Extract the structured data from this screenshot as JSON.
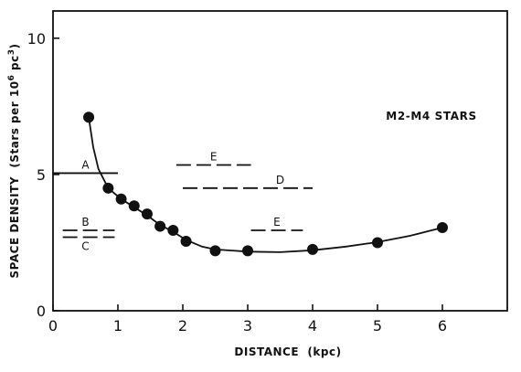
{
  "chart_data": {
    "type": "scatter",
    "annotation": "M2-M4 STARS",
    "xlabel": "DISTANCE  (kpc)",
    "ylabel": "SPACE DENSITY  (Stars per 10",
    "ylabel_sup1": "6",
    "ylabel_mid": " pc",
    "ylabel_sup2": "3",
    "ylabel_end": ")",
    "xlim": [
      0,
      7
    ],
    "ylim": [
      0,
      11
    ],
    "x_ticks": [
      0,
      1,
      2,
      3,
      4,
      5,
      6
    ],
    "x_tick_labels": [
      "0",
      "1",
      "2",
      "3",
      "4",
      "5",
      "6"
    ],
    "y_ticks": [
      0,
      5,
      10
    ],
    "y_tick_labels": [
      "0",
      "5",
      "10"
    ],
    "points": [
      {
        "x": 0.55,
        "y": 7.1
      },
      {
        "x": 0.85,
        "y": 4.5
      },
      {
        "x": 1.05,
        "y": 4.1
      },
      {
        "x": 1.25,
        "y": 3.85
      },
      {
        "x": 1.45,
        "y": 3.55
      },
      {
        "x": 1.65,
        "y": 3.1
      },
      {
        "x": 1.85,
        "y": 2.95
      },
      {
        "x": 2.05,
        "y": 2.55
      },
      {
        "x": 2.5,
        "y": 2.2
      },
      {
        "x": 3.0,
        "y": 2.2
      },
      {
        "x": 4.0,
        "y": 2.25
      },
      {
        "x": 5.0,
        "y": 2.5
      },
      {
        "x": 6.0,
        "y": 3.05
      }
    ],
    "fit_curve": [
      [
        0.55,
        7.1
      ],
      [
        0.62,
        6.0
      ],
      [
        0.7,
        5.2
      ],
      [
        0.85,
        4.5
      ],
      [
        1.05,
        4.1
      ],
      [
        1.25,
        3.8
      ],
      [
        1.45,
        3.5
      ],
      [
        1.65,
        3.15
      ],
      [
        1.85,
        2.9
      ],
      [
        2.05,
        2.6
      ],
      [
        2.3,
        2.35
      ],
      [
        2.5,
        2.25
      ],
      [
        3.0,
        2.17
      ],
      [
        3.5,
        2.15
      ],
      [
        4.0,
        2.22
      ],
      [
        4.5,
        2.35
      ],
      [
        5.0,
        2.52
      ],
      [
        5.5,
        2.75
      ],
      [
        6.0,
        3.05
      ]
    ],
    "segments": [
      {
        "label": "A",
        "x0": 0.0,
        "x1": 1.0,
        "y": 5.05,
        "dashed": false
      },
      {
        "label": "B",
        "x0": 0.15,
        "x1": 0.95,
        "y": 2.95,
        "dashed": true
      },
      {
        "label": "C",
        "x0": 0.15,
        "x1": 0.95,
        "y": 2.7,
        "dashed": true
      },
      {
        "label": "E",
        "x0": 1.9,
        "x1": 3.05,
        "y": 5.35,
        "dashed": true
      },
      {
        "label": "D",
        "x0": 2.0,
        "x1": 4.0,
        "y": 4.5,
        "dashed": true
      },
      {
        "label": "E",
        "x0": 3.05,
        "x1": 3.85,
        "y": 2.95,
        "dashed": true
      }
    ]
  }
}
